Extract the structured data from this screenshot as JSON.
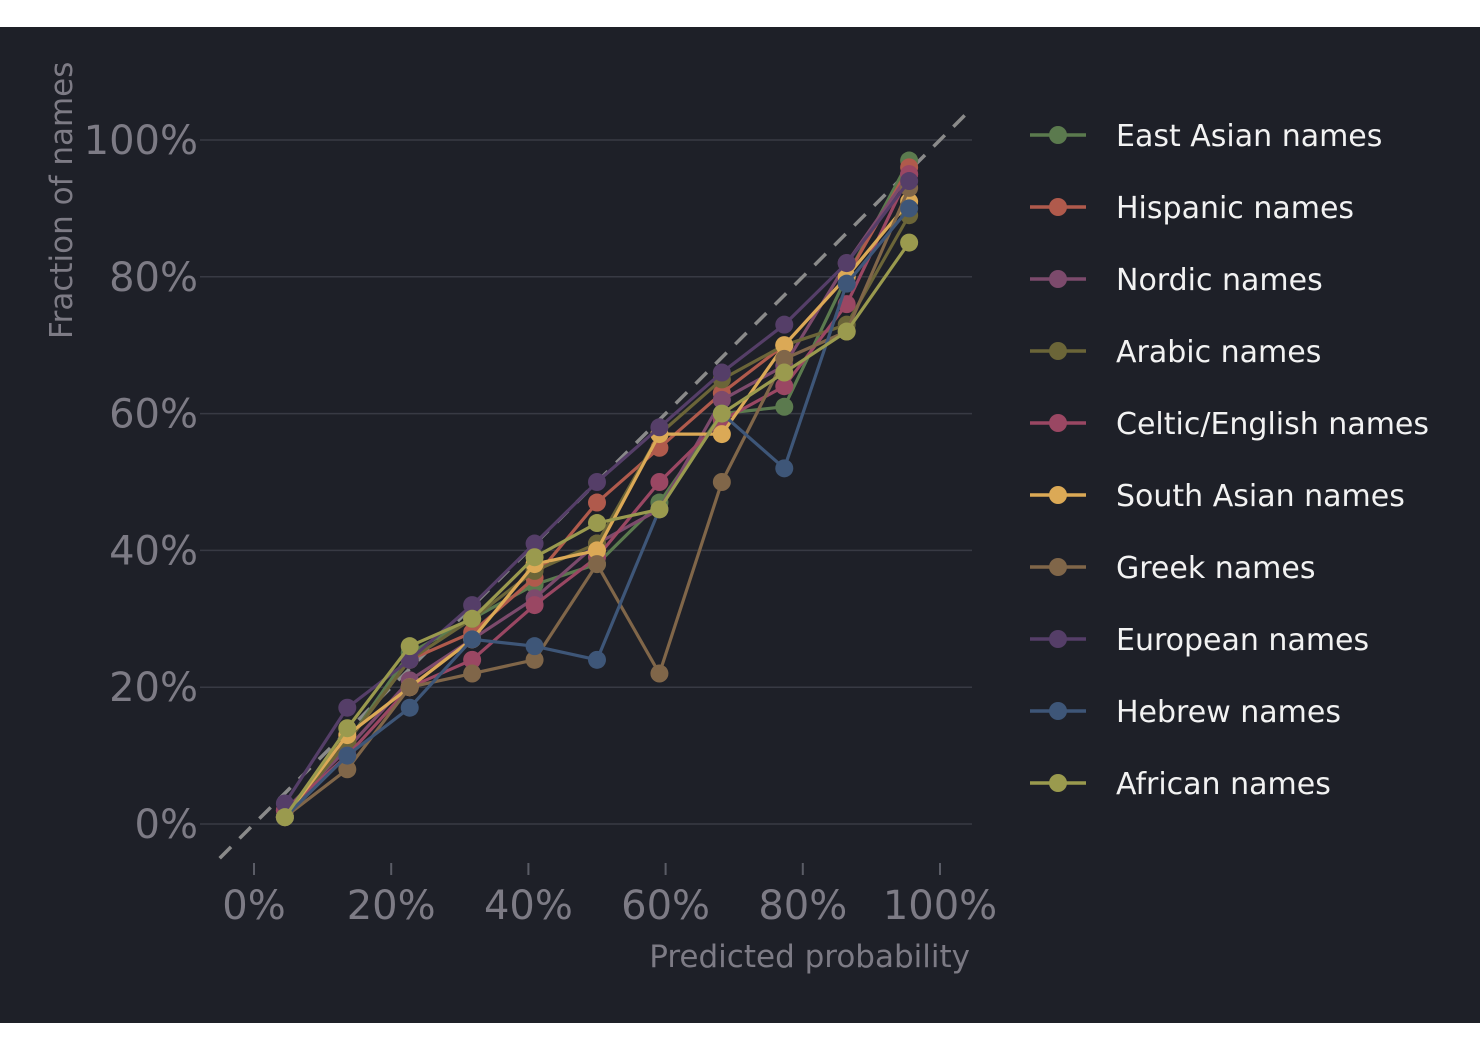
{
  "chart_data": {
    "type": "line",
    "title": "",
    "xlabel": "Predicted probability",
    "ylabel": "Fraction of names",
    "xlim": [
      -0.05,
      1.05
    ],
    "ylim": [
      -0.05,
      1.05
    ],
    "x_ticks": [
      0,
      0.2,
      0.4,
      0.6,
      0.8,
      1.0
    ],
    "x_tick_labels": [
      "0%",
      "20%",
      "40%",
      "60%",
      "80%",
      "100%"
    ],
    "y_ticks": [
      0,
      0.2,
      0.4,
      0.6,
      0.8,
      1.0
    ],
    "y_tick_labels": [
      "0%",
      "20%",
      "40%",
      "60%",
      "80%",
      "100%"
    ],
    "reference_line": "perfect calibration (dashed diagonal)",
    "grid": "horizontal",
    "legend_position": "right",
    "x": [
      0.045,
      0.136,
      0.227,
      0.318,
      0.409,
      0.5,
      0.591,
      0.682,
      0.773,
      0.864,
      0.955
    ],
    "series": [
      {
        "name": "East Asian names",
        "color": "#5b7a4e",
        "values": [
          0.01,
          0.12,
          0.25,
          0.3,
          0.35,
          0.38,
          0.47,
          0.6,
          0.61,
          0.8,
          0.97
        ]
      },
      {
        "name": "Hispanic names",
        "color": "#b05a4c",
        "values": [
          0.01,
          0.12,
          0.24,
          0.28,
          0.36,
          0.47,
          0.55,
          0.63,
          0.7,
          0.8,
          0.96
        ]
      },
      {
        "name": "Nordic names",
        "color": "#7c4a6c",
        "values": [
          0.02,
          0.11,
          0.21,
          0.27,
          0.33,
          0.41,
          0.46,
          0.62,
          0.67,
          0.82,
          0.95
        ]
      },
      {
        "name": "Arabic names",
        "color": "#6b6538",
        "values": [
          0.01,
          0.12,
          0.24,
          0.3,
          0.37,
          0.41,
          0.57,
          0.65,
          0.7,
          0.73,
          0.89
        ]
      },
      {
        "name": "Celtic/English names",
        "color": "#9a4763",
        "values": [
          0.02,
          0.1,
          0.2,
          0.24,
          0.32,
          0.39,
          0.5,
          0.59,
          0.64,
          0.76,
          0.95
        ]
      },
      {
        "name": "South Asian names",
        "color": "#dba956",
        "values": [
          0.01,
          0.13,
          0.2,
          0.27,
          0.38,
          0.4,
          0.57,
          0.57,
          0.7,
          0.8,
          0.91
        ]
      },
      {
        "name": "Greek names",
        "color": "#806649",
        "values": [
          0.01,
          0.08,
          0.2,
          0.22,
          0.24,
          0.38,
          0.22,
          0.5,
          0.68,
          0.72,
          0.93
        ]
      },
      {
        "name": "European names",
        "color": "#553e68",
        "values": [
          0.03,
          0.17,
          0.24,
          0.32,
          0.41,
          0.5,
          0.58,
          0.66,
          0.73,
          0.82,
          0.94
        ]
      },
      {
        "name": "Hebrew names",
        "color": "#3e5678",
        "values": [
          0.01,
          0.1,
          0.17,
          0.27,
          0.26,
          0.24,
          0.46,
          0.6,
          0.52,
          0.79,
          0.9
        ]
      },
      {
        "name": "African names",
        "color": "#9a9a4e",
        "values": [
          0.01,
          0.14,
          0.26,
          0.3,
          0.39,
          0.44,
          0.46,
          0.6,
          0.66,
          0.72,
          0.85
        ]
      }
    ]
  }
}
